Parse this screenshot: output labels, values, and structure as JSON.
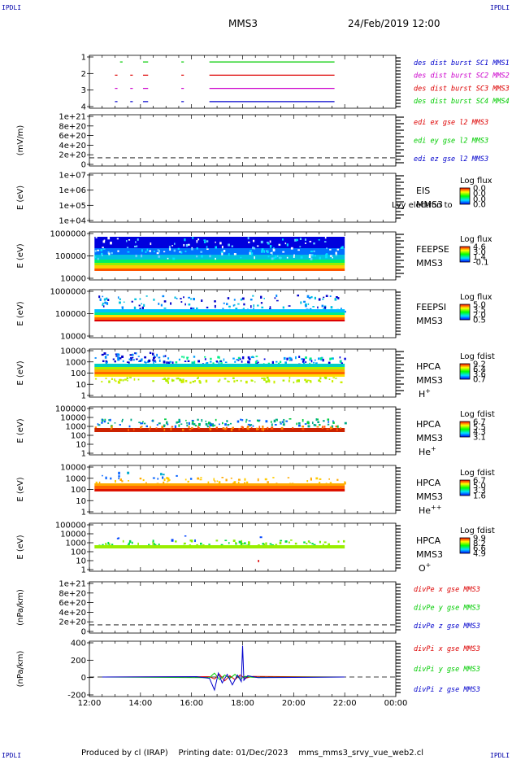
{
  "header": {
    "corner_label": "IPDLI",
    "title_left": "MMS3",
    "title_right": "24/Feb/2019 12:00"
  },
  "footer": {
    "produced_by": "Produced by cl (IRAP)",
    "printing_date": "Printing date: 01/Dec/2023",
    "script_name": "mms_mms3_srvy_vue_web2.cl"
  },
  "colors": {
    "black": "#000000",
    "red": "#dd0000",
    "green": "#00cc00",
    "magenta": "#cc00cc",
    "blue": "#0000cc",
    "foreground": "#000000"
  },
  "chart_data": [
    {
      "type": "line",
      "panel": "burst-intervals",
      "yticks": [
        "1",
        "2",
        "3",
        "4"
      ],
      "ylim": [
        0.5,
        4.5
      ],
      "legend": [
        {
          "text": "des dist burst SC1 MMS1",
          "color": "blue"
        },
        {
          "text": "des dist burst SC2 MMS2",
          "color": "magenta"
        },
        {
          "text": "des dist burst SC3 MMS3",
          "color": "red"
        },
        {
          "text": "des dist burst SC4 MMS4",
          "color": "green"
        }
      ],
      "series": [
        {
          "name": "des dist burst SC1 MMS1",
          "level": 1,
          "color": "blue",
          "intervals": [
            [
              13.0,
              13.1
            ],
            [
              13.6,
              13.7
            ],
            [
              14.1,
              14.3
            ],
            [
              15.6,
              15.7
            ],
            [
              16.7,
              21.6
            ]
          ]
        },
        {
          "name": "des dist burst SC2 MMS2",
          "level": 2,
          "color": "magenta",
          "intervals": [
            [
              13.0,
              13.1
            ],
            [
              13.6,
              13.7
            ],
            [
              14.1,
              14.3
            ],
            [
              15.6,
              15.7
            ],
            [
              16.7,
              21.6
            ]
          ]
        },
        {
          "name": "des dist burst SC3 MMS3",
          "level": 3,
          "color": "red",
          "intervals": [
            [
              13.0,
              13.1
            ],
            [
              13.6,
              13.7
            ],
            [
              14.1,
              14.3
            ],
            [
              15.6,
              15.7
            ],
            [
              16.7,
              21.6
            ]
          ]
        },
        {
          "name": "des dist burst SC4 MMS4",
          "level": 4,
          "color": "green",
          "intervals": [
            [
              13.2,
              13.3
            ],
            [
              14.1,
              14.3
            ],
            [
              15.6,
              15.7
            ],
            [
              16.7,
              21.6
            ]
          ]
        }
      ]
    },
    {
      "type": "line",
      "panel": "edi-e-field",
      "ylabel": "(mV/m)",
      "yticks": [
        "1e+21",
        "8e+20",
        "6e+20",
        "4e+20",
        "2e+20",
        "0"
      ],
      "ylim": [
        -2e+20,
        1.05e+21
      ],
      "legend": [
        {
          "text": "edi ex gse l2 MMS3",
          "color": "red"
        },
        {
          "text": "edi ey gse l2 MMS3",
          "color": "green"
        },
        {
          "text": "edi ez gse l2 MMS3",
          "color": "blue"
        }
      ],
      "series": [],
      "zero_dashed": true
    },
    {
      "type": "heatmap",
      "panel": "eis",
      "ylabel": "E (eV)",
      "yticks": [
        "1e+07",
        "1e+06",
        "1e+05",
        "1e+04"
      ],
      "label_lines": [
        "EIS",
        "MMS3"
      ],
      "overlay_text": "Lvy electron to",
      "colorbar": {
        "title": "Log flux",
        "ticks": [
          "0.0",
          "0.0",
          "0.0",
          "0.0"
        ]
      }
    },
    {
      "type": "heatmap",
      "panel": "feeps-electrons",
      "ylabel": "E (eV)",
      "yticks": [
        "1000000",
        "100000",
        "10000"
      ],
      "label_lines": [
        "FEEPSE",
        "MMS3"
      ],
      "colorbar": {
        "title": "Log flux",
        "ticks": [
          "4.6",
          "3.0",
          "1.4",
          "-0.1"
        ]
      }
    },
    {
      "type": "heatmap",
      "panel": "feeps-ions",
      "ylabel": "E (eV)",
      "yticks": [
        "1000000",
        "100000",
        "10000"
      ],
      "label_lines": [
        "FEEPSI",
        "MMS3"
      ],
      "colorbar": {
        "title": "Log flux",
        "ticks": [
          "5.0",
          "3.5",
          "2.0",
          "0.5"
        ]
      }
    },
    {
      "type": "heatmap",
      "panel": "hpca-h",
      "ylabel": "E (eV)",
      "yticks": [
        "10000",
        "1000",
        "100",
        "10",
        "1"
      ],
      "label_lines": [
        "HPCA",
        "MMS3"
      ],
      "species": "H",
      "species_sup": "+",
      "colorbar": {
        "title": "Log fdist",
        "ticks": [
          "9.2",
          "6.4",
          "3.6",
          "0.7"
        ]
      }
    },
    {
      "type": "heatmap",
      "panel": "hpca-he",
      "ylabel": "E (eV)",
      "yticks": [
        "100000",
        "10000",
        "1000",
        "100",
        "10",
        "1"
      ],
      "label_lines": [
        "HPCA",
        "MMS3"
      ],
      "species": "He",
      "species_sup": "+",
      "colorbar": {
        "title": "Log fdist",
        "ticks": [
          "6.7",
          "5.5",
          "4.3",
          "3.1"
        ]
      }
    },
    {
      "type": "heatmap",
      "panel": "hpca-he2",
      "ylabel": "E (eV)",
      "yticks": [
        "10000",
        "1000",
        "100",
        "10",
        "1"
      ],
      "label_lines": [
        "HPCA",
        "MMS3"
      ],
      "species": "He",
      "species_sup": "++",
      "colorbar": {
        "title": "Log fdist",
        "ticks": [
          "6.7",
          "5.0",
          "3.3",
          "1.6"
        ]
      }
    },
    {
      "type": "heatmap",
      "panel": "hpca-o",
      "ylabel": "E (eV)",
      "yticks": [
        "100000",
        "10000",
        "1000",
        "100",
        "10",
        "1"
      ],
      "label_lines": [
        "HPCA",
        "MMS3"
      ],
      "species": "O",
      "species_sup": "+",
      "colorbar": {
        "title": "Log fdist",
        "ticks": [
          "9.9",
          "8.2",
          "6.6",
          "4.9"
        ]
      }
    },
    {
      "type": "line",
      "panel": "divpe",
      "ylabel": "(nPa/km)",
      "yticks": [
        "1e+21",
        "8e+20",
        "6e+20",
        "4e+20",
        "2e+20",
        "0"
      ],
      "ylim": [
        -2e+20,
        1.05e+21
      ],
      "legend": [
        {
          "text": "divPe x gse MMS3",
          "color": "red"
        },
        {
          "text": "divPe y gse MMS3",
          "color": "green"
        },
        {
          "text": "divPe z gse MMS3",
          "color": "blue"
        }
      ],
      "series": [],
      "zero_dashed": true
    },
    {
      "type": "line",
      "panel": "divpi",
      "ylabel": "(nPa/km)",
      "yticks": [
        "400",
        "200",
        "0",
        "-200"
      ],
      "ylim": [
        -300,
        550
      ],
      "legend": [
        {
          "text": "divPi x gse MMS3",
          "color": "red"
        },
        {
          "text": "divPi y gse MMS3",
          "color": "green"
        },
        {
          "text": "divPi z gse MMS3",
          "color": "blue"
        }
      ],
      "series": [
        {
          "name": "divPi x gse MMS3",
          "color": "red",
          "x": [
            12.5,
            16.7,
            16.9,
            17.1,
            17.3,
            17.5,
            17.7,
            17.9,
            18.1,
            18.4,
            22.0
          ],
          "y": [
            0,
            5,
            -30,
            40,
            -60,
            20,
            -40,
            30,
            -20,
            10,
            0
          ]
        },
        {
          "name": "divPi y gse MMS3",
          "color": "green",
          "x": [
            12.5,
            16.7,
            16.9,
            17.1,
            17.3,
            17.5,
            17.7,
            17.9,
            18.1,
            18.4,
            22.0
          ],
          "y": [
            0,
            -10,
            60,
            -40,
            30,
            -20,
            40,
            -30,
            10,
            -5,
            0
          ]
        },
        {
          "name": "divPi z gse MMS3",
          "color": "blue",
          "x": [
            12.5,
            16.2,
            16.7,
            16.9,
            17.05,
            17.2,
            17.4,
            17.6,
            17.8,
            17.95,
            18.0,
            18.05,
            18.2,
            18.6,
            22.0
          ],
          "y": [
            0,
            5,
            -20,
            -200,
            60,
            -90,
            40,
            -120,
            30,
            -70,
            480,
            -50,
            20,
            -10,
            0
          ]
        }
      ],
      "zero_dashed": true
    }
  ],
  "time_axis": {
    "tick_labels": [
      "12:00",
      "14:00",
      "16:00",
      "18:00",
      "20:00",
      "22:00",
      "00:00"
    ],
    "start_hour": 12,
    "end_hour": 24
  }
}
